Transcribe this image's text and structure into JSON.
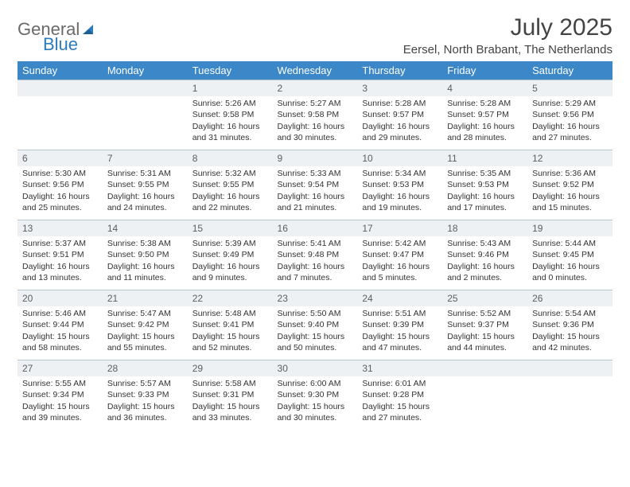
{
  "brand": {
    "word1": "General",
    "word2": "Blue",
    "text_color": "#6a6a6a",
    "accent_color": "#2a7bbf"
  },
  "title": "July 2025",
  "location": "Eersel, North Brabant, The Netherlands",
  "colors": {
    "header_bg": "#3b87c8",
    "header_text": "#ffffff",
    "daynum_bg": "#eef1f3",
    "daynum_text": "#5a5f63",
    "cell_border": "#b8c4cc",
    "body_text": "#333333",
    "page_bg": "#ffffff"
  },
  "fonts": {
    "title_size_pt": 30,
    "location_size_pt": 15,
    "header_size_pt": 13,
    "daynum_size_pt": 12,
    "cell_size_pt": 10.5
  },
  "dayHeaders": [
    "Sunday",
    "Monday",
    "Tuesday",
    "Wednesday",
    "Thursday",
    "Friday",
    "Saturday"
  ],
  "weeks": [
    [
      {
        "day": "",
        "sunrise": "",
        "sunset": "",
        "daylight": ""
      },
      {
        "day": "",
        "sunrise": "",
        "sunset": "",
        "daylight": ""
      },
      {
        "day": "1",
        "sunrise": "Sunrise: 5:26 AM",
        "sunset": "Sunset: 9:58 PM",
        "daylight": "Daylight: 16 hours and 31 minutes."
      },
      {
        "day": "2",
        "sunrise": "Sunrise: 5:27 AM",
        "sunset": "Sunset: 9:58 PM",
        "daylight": "Daylight: 16 hours and 30 minutes."
      },
      {
        "day": "3",
        "sunrise": "Sunrise: 5:28 AM",
        "sunset": "Sunset: 9:57 PM",
        "daylight": "Daylight: 16 hours and 29 minutes."
      },
      {
        "day": "4",
        "sunrise": "Sunrise: 5:28 AM",
        "sunset": "Sunset: 9:57 PM",
        "daylight": "Daylight: 16 hours and 28 minutes."
      },
      {
        "day": "5",
        "sunrise": "Sunrise: 5:29 AM",
        "sunset": "Sunset: 9:56 PM",
        "daylight": "Daylight: 16 hours and 27 minutes."
      }
    ],
    [
      {
        "day": "6",
        "sunrise": "Sunrise: 5:30 AM",
        "sunset": "Sunset: 9:56 PM",
        "daylight": "Daylight: 16 hours and 25 minutes."
      },
      {
        "day": "7",
        "sunrise": "Sunrise: 5:31 AM",
        "sunset": "Sunset: 9:55 PM",
        "daylight": "Daylight: 16 hours and 24 minutes."
      },
      {
        "day": "8",
        "sunrise": "Sunrise: 5:32 AM",
        "sunset": "Sunset: 9:55 PM",
        "daylight": "Daylight: 16 hours and 22 minutes."
      },
      {
        "day": "9",
        "sunrise": "Sunrise: 5:33 AM",
        "sunset": "Sunset: 9:54 PM",
        "daylight": "Daylight: 16 hours and 21 minutes."
      },
      {
        "day": "10",
        "sunrise": "Sunrise: 5:34 AM",
        "sunset": "Sunset: 9:53 PM",
        "daylight": "Daylight: 16 hours and 19 minutes."
      },
      {
        "day": "11",
        "sunrise": "Sunrise: 5:35 AM",
        "sunset": "Sunset: 9:53 PM",
        "daylight": "Daylight: 16 hours and 17 minutes."
      },
      {
        "day": "12",
        "sunrise": "Sunrise: 5:36 AM",
        "sunset": "Sunset: 9:52 PM",
        "daylight": "Daylight: 16 hours and 15 minutes."
      }
    ],
    [
      {
        "day": "13",
        "sunrise": "Sunrise: 5:37 AM",
        "sunset": "Sunset: 9:51 PM",
        "daylight": "Daylight: 16 hours and 13 minutes."
      },
      {
        "day": "14",
        "sunrise": "Sunrise: 5:38 AM",
        "sunset": "Sunset: 9:50 PM",
        "daylight": "Daylight: 16 hours and 11 minutes."
      },
      {
        "day": "15",
        "sunrise": "Sunrise: 5:39 AM",
        "sunset": "Sunset: 9:49 PM",
        "daylight": "Daylight: 16 hours and 9 minutes."
      },
      {
        "day": "16",
        "sunrise": "Sunrise: 5:41 AM",
        "sunset": "Sunset: 9:48 PM",
        "daylight": "Daylight: 16 hours and 7 minutes."
      },
      {
        "day": "17",
        "sunrise": "Sunrise: 5:42 AM",
        "sunset": "Sunset: 9:47 PM",
        "daylight": "Daylight: 16 hours and 5 minutes."
      },
      {
        "day": "18",
        "sunrise": "Sunrise: 5:43 AM",
        "sunset": "Sunset: 9:46 PM",
        "daylight": "Daylight: 16 hours and 2 minutes."
      },
      {
        "day": "19",
        "sunrise": "Sunrise: 5:44 AM",
        "sunset": "Sunset: 9:45 PM",
        "daylight": "Daylight: 16 hours and 0 minutes."
      }
    ],
    [
      {
        "day": "20",
        "sunrise": "Sunrise: 5:46 AM",
        "sunset": "Sunset: 9:44 PM",
        "daylight": "Daylight: 15 hours and 58 minutes."
      },
      {
        "day": "21",
        "sunrise": "Sunrise: 5:47 AM",
        "sunset": "Sunset: 9:42 PM",
        "daylight": "Daylight: 15 hours and 55 minutes."
      },
      {
        "day": "22",
        "sunrise": "Sunrise: 5:48 AM",
        "sunset": "Sunset: 9:41 PM",
        "daylight": "Daylight: 15 hours and 52 minutes."
      },
      {
        "day": "23",
        "sunrise": "Sunrise: 5:50 AM",
        "sunset": "Sunset: 9:40 PM",
        "daylight": "Daylight: 15 hours and 50 minutes."
      },
      {
        "day": "24",
        "sunrise": "Sunrise: 5:51 AM",
        "sunset": "Sunset: 9:39 PM",
        "daylight": "Daylight: 15 hours and 47 minutes."
      },
      {
        "day": "25",
        "sunrise": "Sunrise: 5:52 AM",
        "sunset": "Sunset: 9:37 PM",
        "daylight": "Daylight: 15 hours and 44 minutes."
      },
      {
        "day": "26",
        "sunrise": "Sunrise: 5:54 AM",
        "sunset": "Sunset: 9:36 PM",
        "daylight": "Daylight: 15 hours and 42 minutes."
      }
    ],
    [
      {
        "day": "27",
        "sunrise": "Sunrise: 5:55 AM",
        "sunset": "Sunset: 9:34 PM",
        "daylight": "Daylight: 15 hours and 39 minutes."
      },
      {
        "day": "28",
        "sunrise": "Sunrise: 5:57 AM",
        "sunset": "Sunset: 9:33 PM",
        "daylight": "Daylight: 15 hours and 36 minutes."
      },
      {
        "day": "29",
        "sunrise": "Sunrise: 5:58 AM",
        "sunset": "Sunset: 9:31 PM",
        "daylight": "Daylight: 15 hours and 33 minutes."
      },
      {
        "day": "30",
        "sunrise": "Sunrise: 6:00 AM",
        "sunset": "Sunset: 9:30 PM",
        "daylight": "Daylight: 15 hours and 30 minutes."
      },
      {
        "day": "31",
        "sunrise": "Sunrise: 6:01 AM",
        "sunset": "Sunset: 9:28 PM",
        "daylight": "Daylight: 15 hours and 27 minutes."
      },
      {
        "day": "",
        "sunrise": "",
        "sunset": "",
        "daylight": ""
      },
      {
        "day": "",
        "sunrise": "",
        "sunset": "",
        "daylight": ""
      }
    ]
  ]
}
